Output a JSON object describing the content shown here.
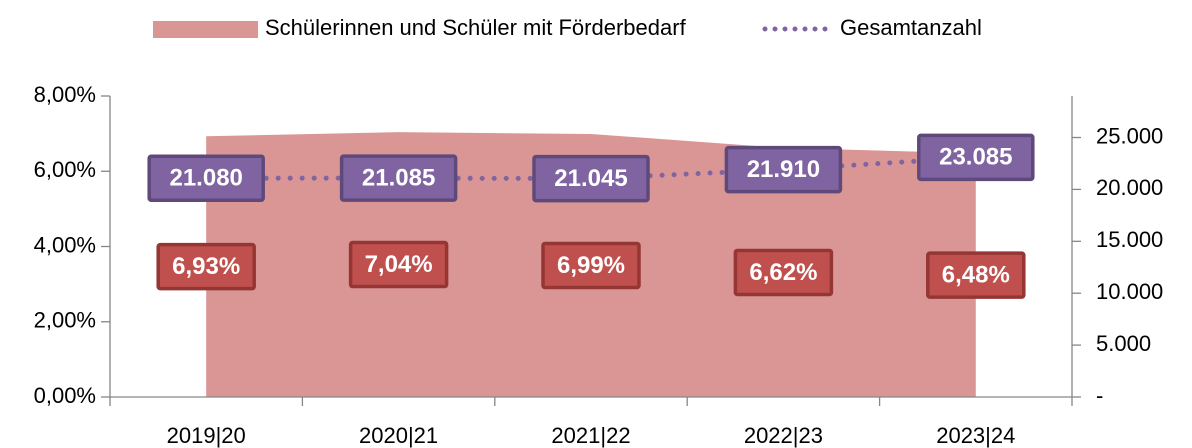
{
  "chart_data": {
    "type": "area-line",
    "categories": [
      "2019|20",
      "2020|21",
      "2021|22",
      "2022|23",
      "2023|24"
    ],
    "series": [
      {
        "name": "Schülerinnen und Schüler mit Förderbedarf",
        "type": "area",
        "color": "#d99694",
        "label_color": "#c0504d",
        "label_border": "#943634",
        "values": [
          6.93,
          7.04,
          6.99,
          6.62,
          6.48
        ],
        "value_labels": [
          "6,93%",
          "7,04%",
          "6,99%",
          "6,62%",
          "6,48%"
        ]
      },
      {
        "name": "Gesamtanzahl",
        "type": "line",
        "axis": "y2",
        "color": "#8064a2",
        "label_color": "#8064a2",
        "label_border": "#5f497a",
        "values": [
          21080,
          21085,
          21045,
          21910,
          23085
        ],
        "value_labels": [
          "21.080",
          "21.085",
          "21.045",
          "21.910",
          "23.085"
        ]
      }
    ],
    "ylim": [
      0,
      8
    ],
    "yticks": [
      {
        "value": 0,
        "label": "0,00%"
      },
      {
        "value": 2,
        "label": "2,00%"
      },
      {
        "value": 4,
        "label": "4,00%"
      },
      {
        "value": 6,
        "label": "6,00%"
      },
      {
        "value": 8,
        "label": "8,00%"
      }
    ],
    "y2lim": [
      0,
      29000
    ],
    "y2ticks": [
      {
        "value": 0,
        "label": "-"
      },
      {
        "value": 5000,
        "label": "5.000"
      },
      {
        "value": 10000,
        "label": "10.000"
      },
      {
        "value": 15000,
        "label": "15.000"
      },
      {
        "value": 20000,
        "label": "20.000"
      },
      {
        "value": 25000,
        "label": "25.000"
      }
    ],
    "legend": "top"
  }
}
